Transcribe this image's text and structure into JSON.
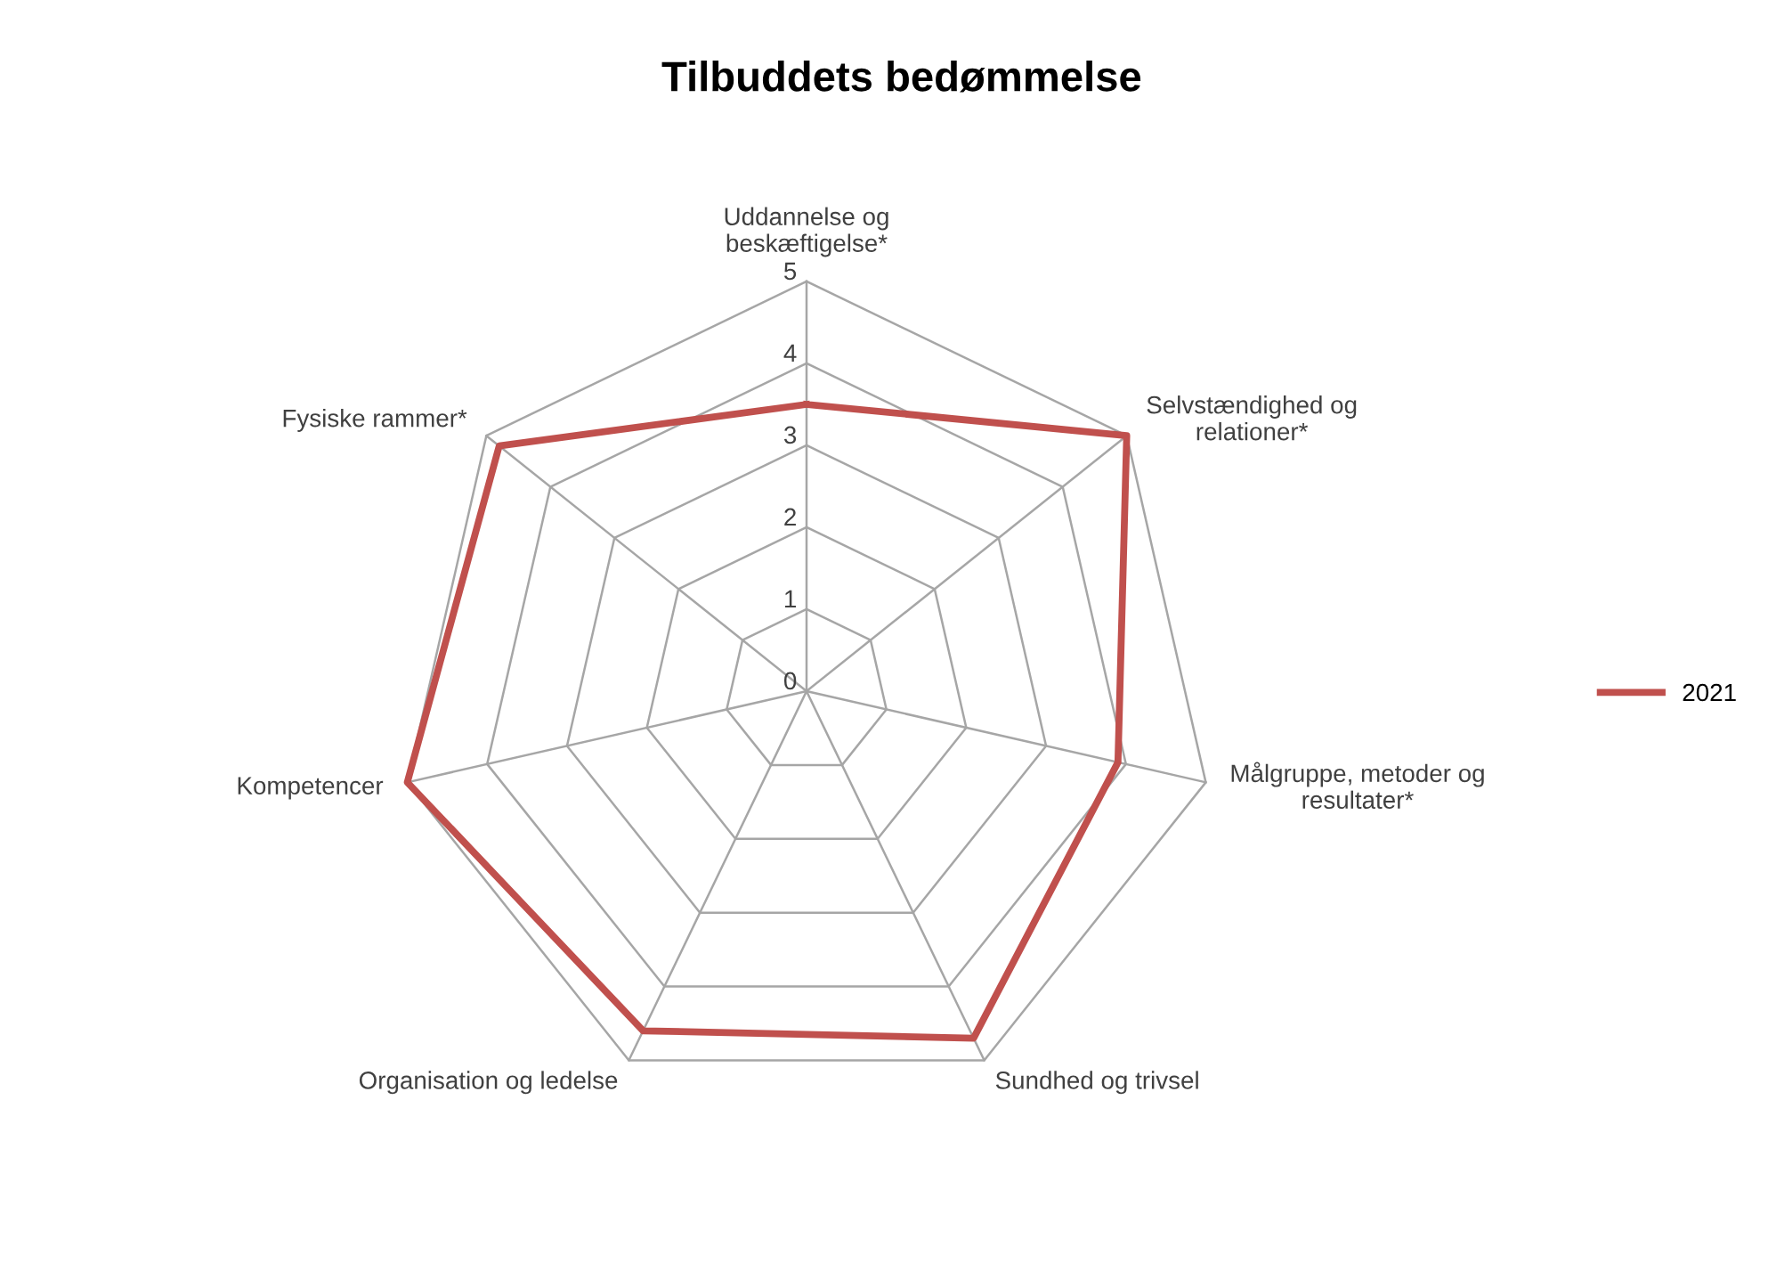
{
  "chart_data": {
    "type": "radar",
    "title": "Tilbuddets bedømmelse",
    "categories": [
      "Uddannelse og\nbeskæftigelse*",
      "Selvstændighed og\nrelationer*",
      "Målgruppe, metoder og\nresultater*",
      "Sundhed og trivsel",
      "Organisation og ledelse",
      "Kompetencer",
      "Fysiske rammer*"
    ],
    "series": [
      {
        "name": "2021",
        "color": "#c0504d",
        "values": [
          3.5,
          5,
          3.9,
          4.7,
          4.6,
          5,
          4.8
        ]
      }
    ],
    "ylim": [
      0,
      5
    ],
    "yticks": [
      0,
      1,
      2,
      3,
      4,
      5
    ],
    "grid": true,
    "legend": "right",
    "marker": "none",
    "line_style": "solid"
  }
}
